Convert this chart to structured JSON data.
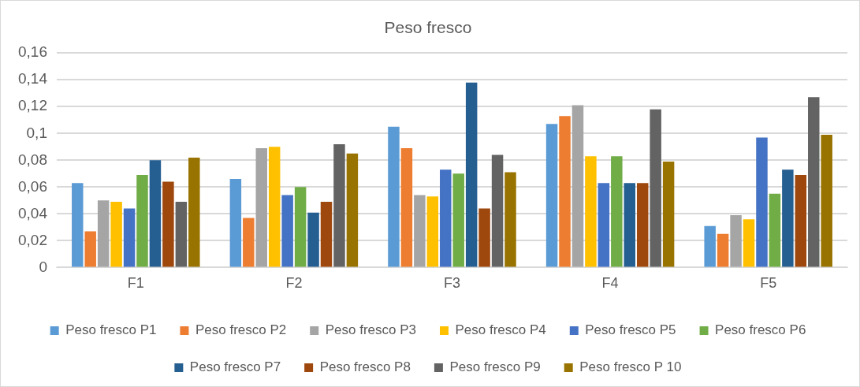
{
  "chart_data": {
    "type": "bar",
    "title": "Peso fresco",
    "categories": [
      "F1",
      "F2",
      "F3",
      "F4",
      "F5"
    ],
    "series": [
      {
        "name": "Peso fresco P1",
        "color": "#5b9bd5",
        "values": [
          0.063,
          0.066,
          0.105,
          0.107,
          0.031
        ]
      },
      {
        "name": "Peso fresco P2",
        "color": "#ed7d31",
        "values": [
          0.027,
          0.037,
          0.089,
          0.113,
          0.025
        ]
      },
      {
        "name": "Peso fresco P3",
        "color": "#a5a5a5",
        "values": [
          0.05,
          0.089,
          0.054,
          0.121,
          0.039
        ]
      },
      {
        "name": "Peso fresco P4",
        "color": "#ffc000",
        "values": [
          0.049,
          0.09,
          0.053,
          0.083,
          0.036
        ]
      },
      {
        "name": "Peso fresco P5",
        "color": "#4472c4",
        "values": [
          0.044,
          0.054,
          0.073,
          0.063,
          0.097
        ]
      },
      {
        "name": "Peso fresco P6",
        "color": "#70ad47",
        "values": [
          0.069,
          0.06,
          0.07,
          0.083,
          0.055
        ]
      },
      {
        "name": "Peso fresco P7",
        "color": "#255e91",
        "values": [
          0.08,
          0.041,
          0.138,
          0.063,
          0.073
        ]
      },
      {
        "name": "Peso fresco P8",
        "color": "#9e480e",
        "values": [
          0.064,
          0.049,
          0.044,
          0.063,
          0.069
        ]
      },
      {
        "name": "Peso fresco P9",
        "color": "#636363",
        "values": [
          0.049,
          0.092,
          0.084,
          0.118,
          0.127
        ]
      },
      {
        "name": "Peso fresco P 10",
        "color": "#997300",
        "values": [
          0.082,
          0.085,
          0.071,
          0.079,
          0.099
        ]
      }
    ],
    "ylim": [
      0,
      0.16
    ],
    "yticks": [
      {
        "value": 0,
        "label": "0"
      },
      {
        "value": 0.02,
        "label": "0,02"
      },
      {
        "value": 0.04,
        "label": "0,04"
      },
      {
        "value": 0.06,
        "label": "0,06"
      },
      {
        "value": 0.08,
        "label": "0,08"
      },
      {
        "value": 0.1,
        "label": "0,1"
      },
      {
        "value": 0.12,
        "label": "0,12"
      },
      {
        "value": 0.14,
        "label": "0,14"
      },
      {
        "value": 0.16,
        "label": "0,16"
      }
    ],
    "grid": "y",
    "legend": "bottom"
  }
}
